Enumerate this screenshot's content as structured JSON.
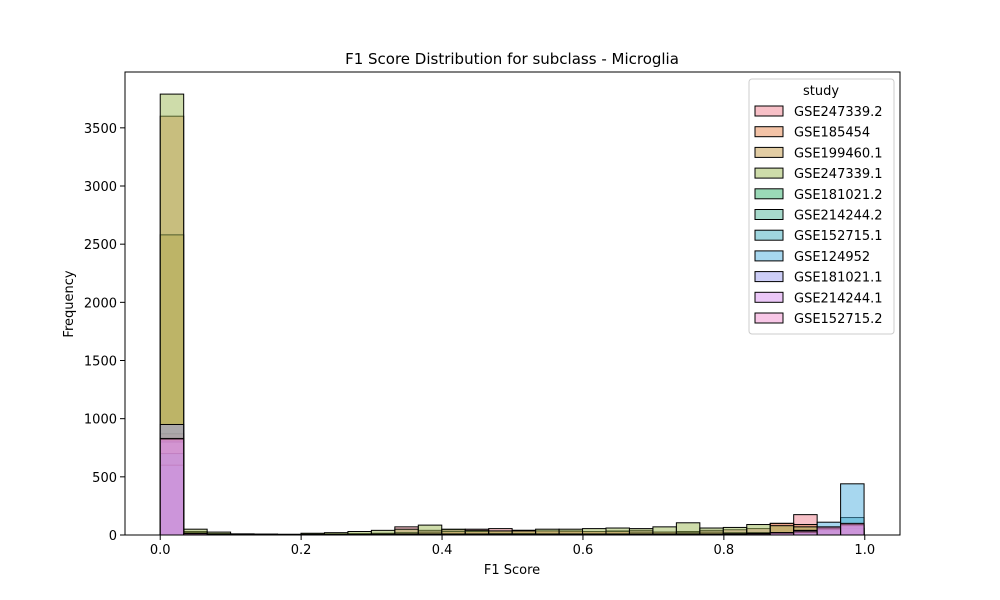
{
  "chart_data": {
    "type": "bar",
    "title": "F1 Score Distribution for subclass - Microglia",
    "xlabel": "F1 Score",
    "ylabel": "Frequency",
    "xlim": [
      -0.05,
      1.05
    ],
    "ylim": [
      0,
      3980
    ],
    "bin_width": 0.0333,
    "bin_start": 0.0,
    "num_bins": 30,
    "x_ticks": [
      0.0,
      0.2,
      0.4,
      0.6,
      0.8,
      1.0
    ],
    "x_tick_labels": [
      "0.0",
      "0.2",
      "0.4",
      "0.6",
      "0.8",
      "1.0"
    ],
    "y_ticks": [
      0,
      500,
      1000,
      1500,
      2000,
      2500,
      3000,
      3500
    ],
    "y_tick_labels": [
      "0",
      "500",
      "1000",
      "1500",
      "2000",
      "2500",
      "3000",
      "3500"
    ],
    "legend_title": "study",
    "legend_position": "upper-right",
    "grid": false,
    "series": [
      {
        "name": "GSE247339.2",
        "color": "#f08290",
        "values": [
          870,
          20,
          10,
          5,
          5,
          5,
          8,
          10,
          12,
          15,
          70,
          40,
          45,
          50,
          55,
          40,
          35,
          30,
          30,
          35,
          40,
          25,
          30,
          40,
          45,
          55,
          100,
          175,
          40,
          35
        ]
      },
      {
        "name": "GSE185454",
        "color": "#e8884f",
        "values": [
          3600,
          30,
          12,
          5,
          5,
          5,
          5,
          8,
          10,
          12,
          20,
          25,
          30,
          30,
          35,
          40,
          35,
          35,
          30,
          30,
          25,
          25,
          20,
          25,
          20,
          20,
          100,
          90,
          20,
          10
        ]
      },
      {
        "name": "GSE199460.1",
        "color": "#c69c4a",
        "values": [
          2580,
          20,
          10,
          5,
          5,
          5,
          5,
          5,
          5,
          8,
          10,
          10,
          10,
          10,
          12,
          12,
          10,
          10,
          10,
          10,
          10,
          10,
          10,
          10,
          10,
          10,
          15,
          15,
          10,
          5
        ]
      },
      {
        "name": "GSE247339.1",
        "color": "#9db955",
        "values": [
          3790,
          50,
          25,
          10,
          8,
          5,
          15,
          20,
          30,
          40,
          50,
          85,
          50,
          40,
          35,
          35,
          50,
          50,
          55,
          60,
          55,
          70,
          105,
          60,
          65,
          90,
          80,
          70,
          60,
          55
        ]
      },
      {
        "name": "GSE181021.2",
        "color": "#36b470",
        "values": [
          700,
          10,
          5,
          3,
          3,
          3,
          3,
          3,
          3,
          5,
          5,
          5,
          5,
          5,
          5,
          5,
          5,
          5,
          5,
          5,
          5,
          5,
          5,
          5,
          5,
          5,
          10,
          10,
          30,
          55
        ]
      },
      {
        "name": "GSE214244.2",
        "color": "#4fb69a",
        "values": [
          800,
          10,
          5,
          3,
          3,
          3,
          3,
          3,
          5,
          5,
          5,
          5,
          5,
          5,
          5,
          5,
          5,
          5,
          5,
          5,
          5,
          5,
          5,
          5,
          5,
          5,
          10,
          15,
          40,
          60
        ]
      },
      {
        "name": "GSE152715.1",
        "color": "#3faec0",
        "values": [
          700,
          8,
          5,
          3,
          3,
          3,
          3,
          3,
          3,
          5,
          5,
          5,
          5,
          5,
          5,
          5,
          5,
          5,
          5,
          5,
          5,
          5,
          5,
          5,
          10,
          10,
          20,
          30,
          60,
          150
        ]
      },
      {
        "name": "GSE124952",
        "color": "#4fb0e0",
        "values": [
          600,
          8,
          5,
          3,
          3,
          3,
          3,
          3,
          3,
          5,
          5,
          5,
          5,
          5,
          5,
          5,
          5,
          5,
          5,
          5,
          5,
          5,
          5,
          5,
          10,
          15,
          20,
          40,
          110,
          440
        ]
      },
      {
        "name": "GSE181021.1",
        "color": "#9b9ef0",
        "values": [
          950,
          10,
          5,
          3,
          3,
          3,
          3,
          3,
          3,
          5,
          5,
          5,
          5,
          5,
          5,
          5,
          5,
          5,
          5,
          5,
          5,
          5,
          5,
          5,
          5,
          10,
          15,
          20,
          50,
          80
        ]
      },
      {
        "name": "GSE214244.1",
        "color": "#d890f0",
        "values": [
          820,
          10,
          5,
          3,
          3,
          3,
          3,
          3,
          3,
          5,
          5,
          5,
          5,
          5,
          5,
          5,
          5,
          5,
          5,
          5,
          5,
          5,
          5,
          5,
          5,
          10,
          15,
          25,
          60,
          90
        ]
      },
      {
        "name": "GSE152715.2",
        "color": "#f28fd0",
        "values": [
          830,
          12,
          5,
          3,
          3,
          3,
          3,
          3,
          3,
          5,
          5,
          5,
          5,
          5,
          5,
          5,
          5,
          5,
          5,
          5,
          5,
          5,
          5,
          5,
          5,
          10,
          20,
          35,
          70,
          100
        ]
      }
    ]
  }
}
